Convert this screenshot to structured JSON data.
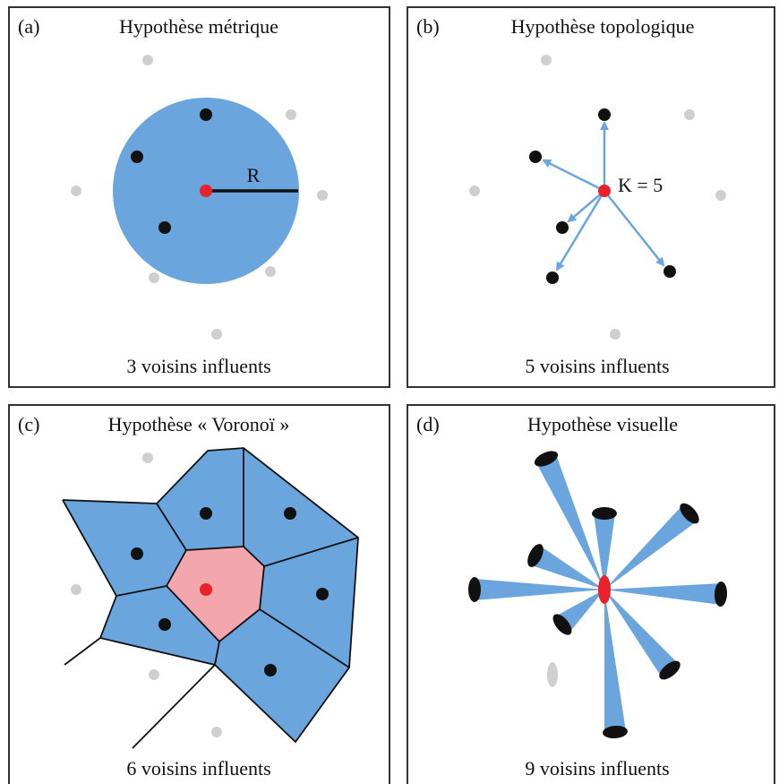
{
  "panels": [
    {
      "label": "(a)",
      "title": "Hypothèse métrique",
      "caption": "3 voisins influents",
      "annotation": "R"
    },
    {
      "label": "(b)",
      "title": "Hypothèse topologique",
      "caption": "5 voisins influents",
      "annotation": "K = 5"
    },
    {
      "label": "(c)",
      "title": "Hypothèse « Voronoï »",
      "caption": "6 voisins influents"
    },
    {
      "label": "(d)",
      "title": "Hypothèse visuelle",
      "caption": "9 voisins influents"
    }
  ]
}
